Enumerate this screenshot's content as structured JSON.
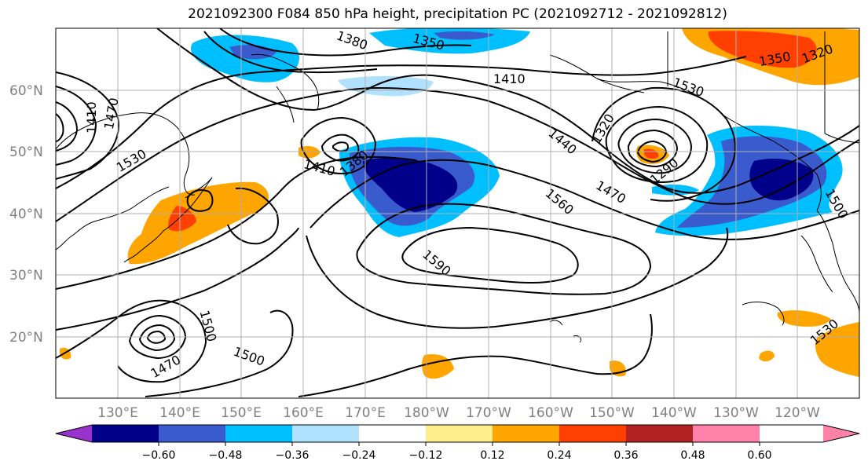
{
  "title": "2021092300 F084 850 hPa height, precipitation PC (2021092712 - 2021092812)",
  "latitude_labels": [
    "60°N",
    "50°N",
    "40°N",
    "30°N",
    "20°N"
  ],
  "longitude_labels": [
    "130°E",
    "140°E",
    "150°E",
    "160°E",
    "170°E",
    "180°W",
    "170°W",
    "160°W",
    "150°W",
    "140°W",
    "130°W",
    "120°W"
  ],
  "contour_labels": [
    "1380",
    "1350",
    "1410",
    "1350",
    "1320",
    "1410",
    "1470",
    "1530",
    "1410",
    "1380",
    "1440",
    "1320",
    "1290",
    "1530",
    "1470",
    "1560",
    "1500",
    "1590",
    "1500",
    "1470",
    "1500",
    "1530"
  ],
  "colorbar": {
    "colors": [
      "#9932cc",
      "#00008b",
      "#3a5bcd",
      "#00bfff",
      "#b0e2ff",
      "#ffffff",
      "#ffec8b",
      "#ffa500",
      "#ff4000",
      "#b22222",
      "#ff82ab"
    ],
    "tick_labels": [
      "−0.60",
      "−0.48",
      "−0.36",
      "−0.24",
      "−0.12",
      "0.12",
      "0.24",
      "0.36",
      "0.48",
      "0.60"
    ]
  }
}
